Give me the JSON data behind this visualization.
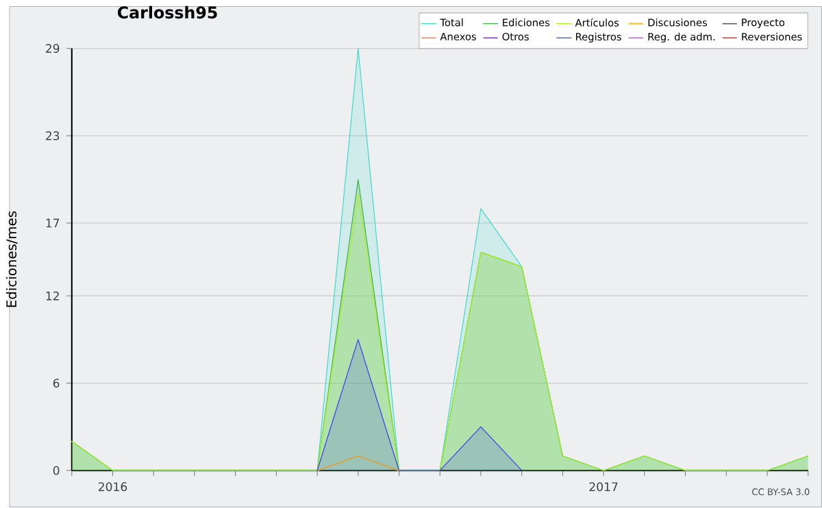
{
  "chart_data": {
    "type": "area",
    "title": "Carlossh95",
    "ylabel": "Ediciones/mes",
    "x": [
      "2015-12",
      "2016-01",
      "2016-02",
      "2016-03",
      "2016-04",
      "2016-05",
      "2016-06",
      "2016-07",
      "2016-08",
      "2016-09",
      "2016-10",
      "2016-11",
      "2016-12",
      "2017-01",
      "2017-02",
      "2017-03",
      "2017-04",
      "2017-05",
      "2017-06"
    ],
    "series": [
      {
        "name": "Total",
        "color": "#40d8cc",
        "values": [
          2,
          0,
          0,
          0,
          0,
          0,
          0,
          29,
          0,
          0,
          18,
          14,
          1,
          0,
          1,
          0,
          0,
          0,
          1
        ]
      },
      {
        "name": "Ediciones",
        "color": "#3cb043",
        "values": [
          2,
          0,
          0,
          0,
          0,
          0,
          0,
          20,
          0,
          0,
          15,
          14,
          1,
          0,
          1,
          0,
          0,
          0,
          1
        ]
      },
      {
        "name": "Artículos",
        "color": "#a8f020",
        "values": [
          2,
          0,
          0,
          0,
          0,
          0,
          0,
          19,
          0,
          0,
          15,
          14,
          1,
          0,
          1,
          0,
          0,
          0,
          1
        ]
      },
      {
        "name": "Discusiones",
        "color": "#f0c030",
        "type": "line",
        "values": [
          null,
          null,
          null,
          null,
          null,
          null,
          0,
          1,
          0,
          null,
          null,
          null,
          null,
          null,
          null,
          null,
          null,
          null,
          null
        ]
      },
      {
        "name": "Proyecto",
        "color": "#555555",
        "type": "line",
        "values": [
          null,
          null,
          null,
          null,
          null,
          null,
          null,
          null,
          null,
          null,
          null,
          null,
          null,
          null,
          null,
          null,
          null,
          null,
          null
        ]
      },
      {
        "name": "Anexos",
        "color": "#ff7f50",
        "type": "line",
        "values": [
          null,
          null,
          null,
          null,
          null,
          null,
          null,
          null,
          null,
          null,
          null,
          null,
          null,
          null,
          null,
          null,
          null,
          null,
          null
        ]
      },
      {
        "name": "Otros",
        "color": "#8a2be2",
        "type": "line",
        "values": [
          null,
          null,
          null,
          null,
          null,
          null,
          null,
          null,
          null,
          null,
          null,
          null,
          null,
          null,
          null,
          null,
          null,
          null,
          null
        ]
      },
      {
        "name": "Registros",
        "color": "#3a3af0",
        "values": [
          null,
          null,
          null,
          null,
          null,
          null,
          0,
          9,
          0,
          0,
          3,
          0,
          null,
          null,
          null,
          null,
          null,
          null,
          null
        ]
      },
      {
        "name": "Reg. de adm.",
        "color": "#d050f0",
        "type": "line",
        "values": [
          null,
          null,
          null,
          null,
          null,
          null,
          null,
          null,
          null,
          null,
          null,
          null,
          null,
          null,
          null,
          null,
          null,
          null,
          null
        ]
      },
      {
        "name": "Reversiones",
        "color": "#e03030",
        "type": "line",
        "values": [
          null,
          null,
          null,
          null,
          null,
          null,
          null,
          null,
          null,
          null,
          null,
          null,
          null,
          null,
          null,
          null,
          null,
          null,
          null
        ]
      }
    ],
    "xlim": [
      "2015-12",
      "2017-06"
    ],
    "xticks": [
      {
        "value": "2015-12",
        "label": null
      },
      {
        "value": "2016-01",
        "label": "2016"
      },
      {
        "value": "2016-02",
        "label": null
      },
      {
        "value": "2016-03",
        "label": null
      },
      {
        "value": "2016-04",
        "label": null
      },
      {
        "value": "2016-05",
        "label": null
      },
      {
        "value": "2016-06",
        "label": null
      },
      {
        "value": "2016-07",
        "label": null
      },
      {
        "value": "2016-08",
        "label": null
      },
      {
        "value": "2016-09",
        "label": null
      },
      {
        "value": "2016-10",
        "label": null
      },
      {
        "value": "2016-11",
        "label": null
      },
      {
        "value": "2016-12",
        "label": null
      },
      {
        "value": "2017-01",
        "label": "2017"
      },
      {
        "value": "2017-02",
        "label": null
      },
      {
        "value": "2017-03",
        "label": null
      },
      {
        "value": "2017-04",
        "label": null
      },
      {
        "value": "2017-05",
        "label": null
      },
      {
        "value": "2017-06",
        "label": null
      }
    ],
    "ylim": [
      0,
      29
    ],
    "yticks": [
      0,
      6,
      12,
      17,
      23,
      29
    ],
    "grid": "y",
    "legend": "top right",
    "annotations": [
      "CC BY-SA 3.0"
    ]
  }
}
